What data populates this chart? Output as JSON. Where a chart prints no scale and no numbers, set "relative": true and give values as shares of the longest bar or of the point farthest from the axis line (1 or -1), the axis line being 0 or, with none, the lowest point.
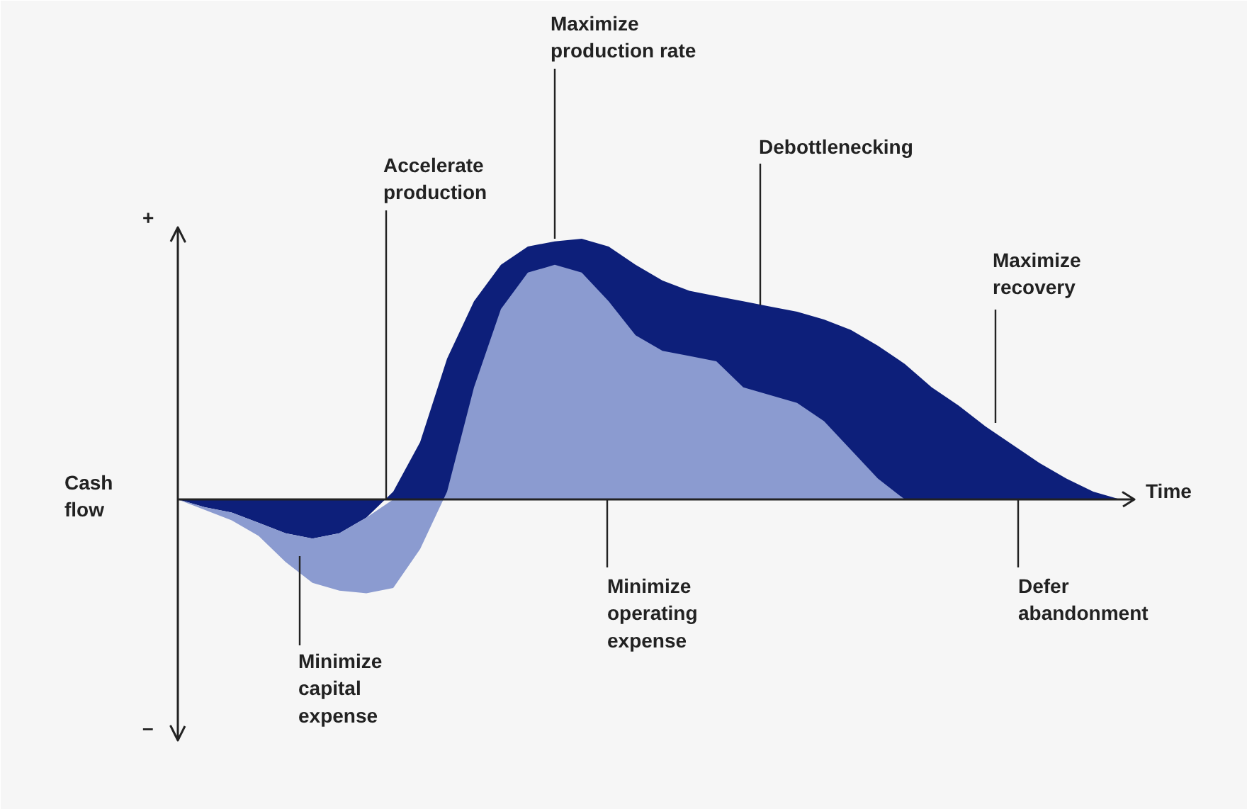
{
  "chart_data": {
    "type": "area",
    "relative": true,
    "xlabel": "Time",
    "ylabel": "Cash\nflow",
    "categories": [
      null,
      null,
      null,
      null,
      null,
      null,
      null,
      null,
      null,
      null,
      null,
      null,
      null,
      null,
      null,
      null,
      null,
      null,
      null,
      null,
      null,
      null,
      null,
      null,
      null,
      null,
      null,
      null,
      null,
      null,
      null,
      null,
      null,
      null,
      null,
      null
    ],
    "series": [
      {
        "color": "#0d1f7a",
        "values": [
          0,
          -0.03,
          -0.05,
          -0.09,
          -0.13,
          -0.15,
          -0.13,
          -0.07,
          0.03,
          0.22,
          0.54,
          0.76,
          0.9,
          0.97,
          0.99,
          1,
          0.97,
          0.9,
          0.84,
          0.8,
          0.78,
          0.76,
          0.74,
          0.72,
          0.69,
          0.65,
          0.59,
          0.52,
          0.43,
          0.36,
          0.28,
          0.21,
          0.14,
          0.08,
          0.03,
          0
        ]
      },
      {
        "color": "#8b9bd0",
        "values": [
          0,
          -0.04,
          -0.08,
          -0.14,
          -0.24,
          -0.32,
          -0.35,
          -0.36,
          -0.34,
          -0.19,
          0.03,
          0.43,
          0.73,
          0.87,
          0.9,
          0.87,
          0.76,
          0.63,
          0.57,
          0.55,
          0.53,
          0.43,
          0.4,
          0.37,
          0.3,
          0.19,
          0.08,
          0,
          0,
          0,
          0,
          0,
          0,
          0,
          0,
          0
        ]
      }
    ],
    "annotations": [
      "Maximize\nproduction rate",
      "Accelerate\nproduction",
      "Debottlenecking",
      "Maximize\nrecovery",
      "Minimize\ncapital\nexpense",
      "Minimize\noperating\nexpense",
      "Defer\nabandonment",
      "+",
      "–"
    ],
    "grid": false
  }
}
